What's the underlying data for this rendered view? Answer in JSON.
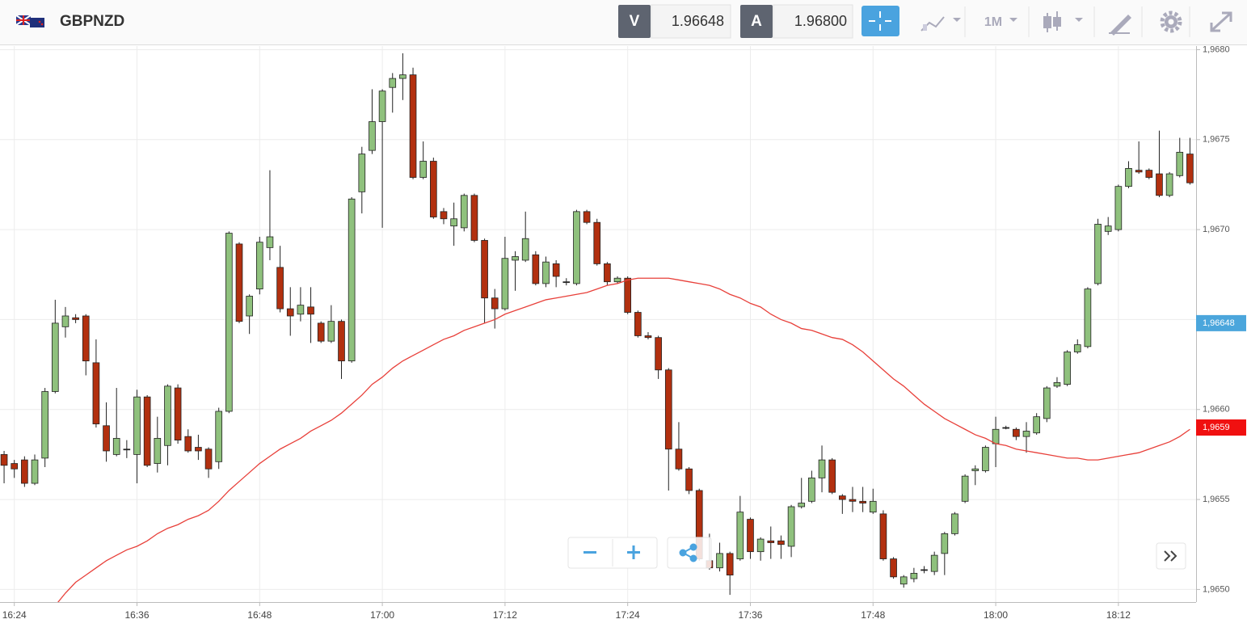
{
  "header": {
    "symbol": "GBPNZD",
    "sell_label": "V",
    "sell_price": "1.96648",
    "buy_label": "A",
    "buy_price": "1.96800",
    "timeframe": "1M"
  },
  "chart_data": {
    "type": "candlestick",
    "categories": [
      null,
      "16:24",
      null,
      null,
      null,
      null,
      null,
      null,
      null,
      null,
      null,
      null,
      null,
      "16:36",
      null,
      null,
      null,
      null,
      null,
      null,
      null,
      null,
      null,
      null,
      null,
      "16:48",
      null,
      null,
      null,
      null,
      null,
      null,
      null,
      null,
      null,
      null,
      null,
      "17:00",
      null,
      null,
      null,
      null,
      null,
      null,
      null,
      null,
      null,
      null,
      null,
      "17:12",
      null,
      null,
      null,
      null,
      null,
      null,
      null,
      null,
      null,
      null,
      null,
      "17:24",
      null,
      null,
      null,
      null,
      null,
      null,
      null,
      null,
      null,
      null,
      null,
      "17:36",
      null,
      null,
      null,
      null,
      null,
      null,
      null,
      null,
      null,
      null,
      null,
      "17:48",
      null,
      null,
      null,
      null,
      null,
      null,
      null,
      null,
      null,
      null,
      null,
      "18:00",
      null,
      null,
      null,
      null,
      null,
      null,
      null,
      null,
      null,
      null,
      null,
      "18:12",
      null,
      null,
      null,
      null,
      null,
      null,
      null
    ],
    "open": [
      1.96575,
      1.9657,
      1.96572,
      1.96559,
      1.96573,
      1.9661,
      1.96646,
      1.96651,
      1.96652,
      1.96626,
      1.96591,
      1.96575,
      1.96578,
      1.96575,
      1.96607,
      1.9657,
      1.9658,
      1.96612,
      1.96585,
      1.96579,
      1.96578,
      1.96571,
      1.96599,
      1.96692,
      1.96652,
      1.96667,
      1.9669,
      1.96679,
      1.96656,
      1.96653,
      1.96657,
      1.96648,
      1.96638,
      1.96649,
      1.96627,
      1.96721,
      1.96744,
      1.9676,
      1.96779,
      1.96784,
      1.96786,
      1.96729,
      1.96738,
      1.9671,
      1.96702,
      1.96701,
      1.96719,
      1.96694,
      1.96662,
      1.96656,
      1.96683,
      1.96683,
      1.96686,
      1.9667,
      1.96681,
      1.96671,
      1.9667,
      1.9671,
      1.96704,
      1.96681,
      1.96671,
      1.96673,
      1.96654,
      1.96641,
      1.9664,
      1.96622,
      1.96578,
      1.96567,
      1.96555,
      1.96516,
      1.96512,
      1.9652,
      1.96517,
      1.96539,
      1.96521,
      1.96527,
      1.96527,
      1.96524,
      1.96546,
      1.96549,
      1.96562,
      1.96572,
      1.96552,
      1.9655,
      1.96549,
      1.96543,
      1.96542,
      1.96517,
      1.96503,
      1.96506,
      1.96511,
      1.9651,
      1.9652,
      1.96531,
      1.96549,
      1.96566,
      1.96566,
      1.96581,
      1.9659,
      1.96589,
      1.96585,
      1.96587,
      1.96595,
      1.96613,
      1.96614,
      1.96632,
      1.96635,
      1.9667,
      1.96699,
      1.967,
      1.96724,
      1.96733,
      1.96733,
      1.96731,
      1.96719,
      1.9673,
      1.96742
    ],
    "high": [
      1.96577,
      1.96572,
      1.96574,
      1.96575,
      1.96612,
      1.96661,
      1.96657,
      1.96653,
      1.96653,
      1.96639,
      1.96604,
      1.96612,
      1.96583,
      1.96611,
      1.96608,
      1.96596,
      1.96614,
      1.96614,
      1.96589,
      1.96586,
      1.96579,
      1.96601,
      1.96699,
      1.96693,
      1.96664,
      1.96696,
      1.96733,
      1.96691,
      1.96668,
      1.96668,
      1.96668,
      1.96649,
      1.96658,
      1.9665,
      1.96718,
      1.96746,
      1.96778,
      1.96778,
      1.96787,
      1.96798,
      1.9679,
      1.96749,
      1.9674,
      1.96712,
      1.96715,
      1.9672,
      1.9672,
      1.96695,
      1.96667,
      1.96696,
      1.96688,
      1.9671,
      1.96688,
      1.96685,
      1.96683,
      1.96673,
      1.96711,
      1.96711,
      1.96706,
      1.96682,
      1.96674,
      1.96674,
      1.96655,
      1.96643,
      1.96641,
      1.96623,
      1.96593,
      1.96568,
      1.96556,
      1.96531,
      1.96526,
      1.96521,
      1.96552,
      1.9654,
      1.96529,
      1.96535,
      1.9653,
      1.96547,
      1.96562,
      1.96566,
      1.9658,
      1.96573,
      1.96553,
      1.96557,
      1.96557,
      1.96556,
      1.96544,
      1.96518,
      1.96508,
      1.96512,
      1.96513,
      1.96521,
      1.96532,
      1.96543,
      1.96564,
      1.96569,
      1.9658,
      1.96596,
      1.96591,
      1.9659,
      1.96593,
      1.96598,
      1.96613,
      1.96618,
      1.96633,
      1.96639,
      1.96668,
      1.96706,
      1.96707,
      1.96725,
      1.96738,
      1.96749,
      1.96734,
      1.96755,
      1.96732,
      1.96751,
      1.96751
    ],
    "low": [
      1.96559,
      1.96562,
      1.96557,
      1.96558,
      1.96568,
      1.96609,
      1.9664,
      1.96648,
      1.96619,
      1.9659,
      1.96571,
      1.96574,
      1.96573,
      1.96559,
      1.96568,
      1.96565,
      1.96569,
      1.96581,
      1.96576,
      1.96572,
      1.96562,
      1.96567,
      1.96598,
      1.96648,
      1.96642,
      1.96664,
      1.96683,
      1.96654,
      1.96641,
      1.96649,
      1.96637,
      1.96637,
      1.96637,
      1.96617,
      1.96626,
      1.96709,
      1.96742,
      1.96701,
      1.96765,
      1.96772,
      1.96728,
      1.96728,
      1.96706,
      1.96703,
      1.96691,
      1.96699,
      1.96693,
      1.96648,
      1.96645,
      1.96655,
      1.96666,
      1.96682,
      1.96669,
      1.96668,
      1.96668,
      1.96669,
      1.96669,
      1.96703,
      1.9668,
      1.96669,
      1.9667,
      1.96653,
      1.9664,
      1.96639,
      1.96617,
      1.96555,
      1.96566,
      1.96553,
      1.96516,
      1.96511,
      1.9651,
      1.96497,
      1.96516,
      1.96517,
      1.96516,
      1.96517,
      1.96517,
      1.96518,
      1.96545,
      1.96548,
      1.96554,
      1.96553,
      1.96542,
      1.96543,
      1.96543,
      1.96542,
      1.96516,
      1.96506,
      1.96501,
      1.96504,
      1.96509,
      1.96508,
      1.96508,
      1.9653,
      1.96548,
      1.96558,
      1.96565,
      1.96568,
      1.96589,
      1.96583,
      1.96576,
      1.96586,
      1.96593,
      1.96612,
      1.96613,
      1.96631,
      1.96634,
      1.96669,
      1.96697,
      1.96699,
      1.96723,
      1.96731,
      1.96728,
      1.96718,
      1.96718,
      1.96729,
      1.96725
    ],
    "close": [
      1.96569,
      1.96567,
      1.96559,
      1.96572,
      1.9661,
      1.96648,
      1.96652,
      1.9665,
      1.96627,
      1.96592,
      1.96577,
      1.96584,
      1.96578,
      1.96607,
      1.96569,
      1.96584,
      1.96613,
      1.96583,
      1.96577,
      1.96577,
      1.96567,
      1.96599,
      1.96698,
      1.96649,
      1.96663,
      1.96693,
      1.96696,
      1.96656,
      1.96652,
      1.96658,
      1.96653,
      1.96638,
      1.96649,
      1.96627,
      1.96717,
      1.96742,
      1.9676,
      1.96777,
      1.96784,
      1.96786,
      1.96729,
      1.96738,
      1.96707,
      1.96706,
      1.96706,
      1.96719,
      1.96694,
      1.96662,
      1.96656,
      1.96684,
      1.96685,
      1.96695,
      1.9667,
      1.96682,
      1.96674,
      1.96671,
      1.9671,
      1.96704,
      1.96681,
      1.96671,
      1.96673,
      1.96654,
      1.96641,
      1.9664,
      1.96622,
      1.96578,
      1.96567,
      1.96555,
      1.96517,
      1.96512,
      1.9652,
      1.96508,
      1.96543,
      1.96521,
      1.96528,
      1.96526,
      1.96525,
      1.96546,
      1.96548,
      1.96562,
      1.96572,
      1.96554,
      1.9655,
      1.96549,
      1.96548,
      1.96549,
      1.96517,
      1.96507,
      1.96507,
      1.96509,
      1.96511,
      1.96519,
      1.96531,
      1.96542,
      1.96563,
      1.96567,
      1.96579,
      1.96589,
      1.9659,
      1.96585,
      1.96588,
      1.96596,
      1.96612,
      1.96615,
      1.96632,
      1.96636,
      1.96667,
      1.96703,
      1.96702,
      1.96724,
      1.96734,
      1.96732,
      1.96729,
      1.96719,
      1.96731,
      1.96743,
      1.96726
    ],
    "up_color": "#8fc17d",
    "down_color": "#b2300f",
    "line": {
      "color": "#e8403a",
      "values": [
        null,
        null,
        null,
        null,
        null,
        1.96491,
        1.96498,
        1.96504,
        1.96508,
        1.96512,
        1.96516,
        1.96519,
        1.96522,
        1.96524,
        1.96527,
        1.96531,
        1.96534,
        1.96536,
        1.96539,
        1.96541,
        1.96544,
        1.96549,
        1.96555,
        1.9656,
        1.96565,
        1.9657,
        1.96574,
        1.96578,
        1.96581,
        1.96584,
        1.96588,
        1.96591,
        1.96594,
        1.96598,
        1.96603,
        1.96608,
        1.96614,
        1.96618,
        1.96623,
        1.96627,
        1.9663,
        1.96633,
        1.96636,
        1.96639,
        1.96641,
        1.96644,
        1.96646,
        1.96648,
        1.9665,
        1.96653,
        1.96655,
        1.96657,
        1.96659,
        1.96661,
        1.96662,
        1.96663,
        1.96664,
        1.96665,
        1.96667,
        1.96669,
        1.9667,
        1.96672,
        1.96673,
        1.96673,
        1.96673,
        1.96673,
        1.96672,
        1.96671,
        1.9667,
        1.96669,
        1.96667,
        1.96664,
        1.96662,
        1.96659,
        1.96657,
        1.96653,
        1.9665,
        1.96648,
        1.96645,
        1.96644,
        1.96642,
        1.9664,
        1.96639,
        1.96636,
        1.96632,
        1.96627,
        1.96622,
        1.96617,
        1.96613,
        1.96608,
        1.96603,
        1.96599,
        1.96595,
        1.96592,
        1.96589,
        1.96586,
        1.96584,
        1.96581,
        1.9658,
        1.96578,
        1.96577,
        1.96576,
        1.96575,
        1.96574,
        1.96573,
        1.96573,
        1.96572,
        1.96572,
        1.96573,
        1.96574,
        1.96575,
        1.96576,
        1.96578,
        1.9658,
        1.96582,
        1.96585,
        1.96589
      ]
    },
    "ylim": [
      1.96493,
      1.96802
    ],
    "yticks": [
      {
        "value": 1.965,
        "label": "1,9650"
      },
      {
        "value": 1.9655,
        "label": "1,9655"
      },
      {
        "value": 1.966,
        "label": "1,9660"
      },
      {
        "value": 1.9665,
        "label": "1,9665"
      },
      {
        "value": 1.967,
        "label": "1,9670"
      },
      {
        "value": 1.9675,
        "label": "1,9675"
      },
      {
        "value": 1.968,
        "label": "1,9680"
      }
    ],
    "grid": true,
    "price_tags": [
      {
        "value": 1.96648,
        "label": "1,96648",
        "color": "#4ba6dc"
      },
      {
        "value": 1.9659,
        "label": "1,9659",
        "color": "#f01010"
      }
    ]
  }
}
